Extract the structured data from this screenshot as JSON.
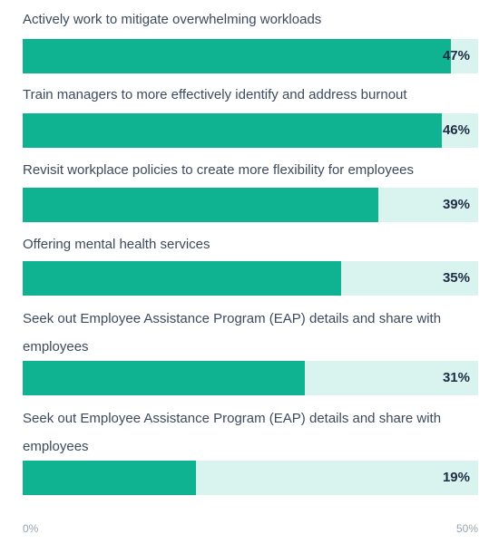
{
  "chart_data": {
    "type": "bar",
    "orientation": "horizontal",
    "categories": [
      "Actively work to mitigate overwhelming workloads",
      "Train managers to more effectively identify and address burnout",
      "Revisit workplace policies to create more flexibility for employees",
      "Offering mental health services",
      "Seek out Employee Assistance Program (EAP) details and share with employees",
      "Seek out Employee Assistance Program (EAP) details and share with employees"
    ],
    "values": [
      47,
      46,
      39,
      35,
      31,
      19
    ],
    "value_labels": [
      "47%",
      "46%",
      "39%",
      "35%",
      "31%",
      "19%"
    ],
    "xlim": [
      0,
      50
    ],
    "x_tick_labels": [
      "0%",
      "50%"
    ],
    "grid": false,
    "colors": {
      "fill": "#0fb391",
      "track": "#d9f3ee",
      "label_text": "#3d4a5c",
      "value_text": "#1f2c46",
      "axis_text": "#9aa3ad"
    }
  }
}
